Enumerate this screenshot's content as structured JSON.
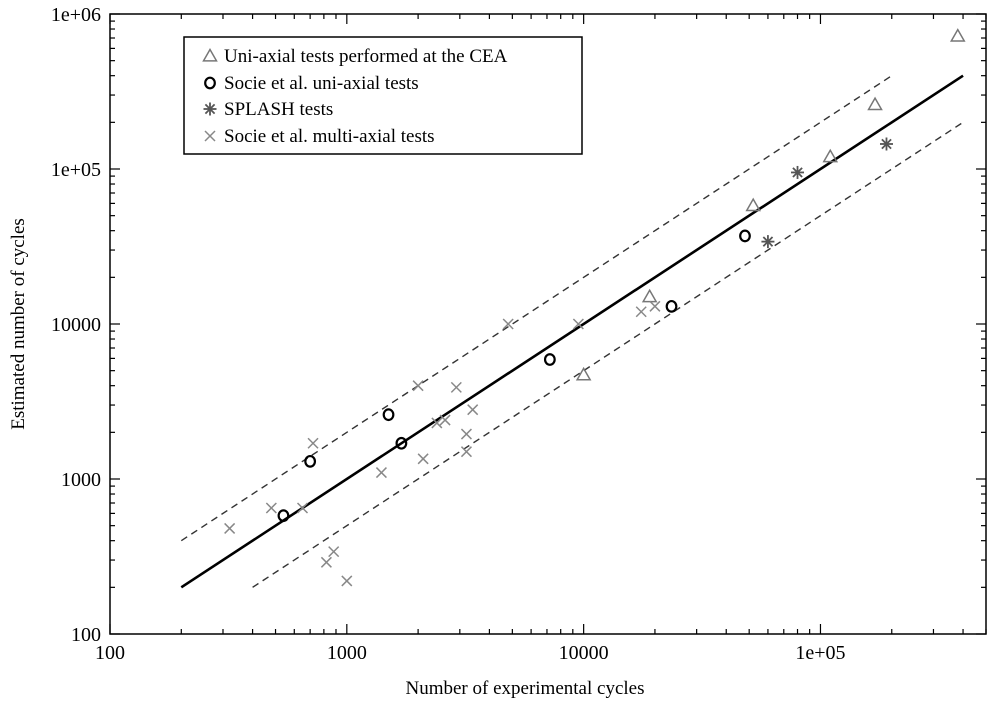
{
  "chart_data": {
    "type": "scatter",
    "x_scale": "log",
    "y_scale": "log",
    "xlim": [
      100,
      500000
    ],
    "ylim": [
      100,
      1000000
    ],
    "xlabel": "Number of experimental cycles",
    "ylabel": "Estimated number of cycles",
    "x_ticks": [
      {
        "value": 100,
        "label": "100"
      },
      {
        "value": 1000,
        "label": "1000"
      },
      {
        "value": 10000,
        "label": "10000"
      },
      {
        "value": 100000,
        "label": "1e+05"
      }
    ],
    "y_ticks": [
      {
        "value": 100,
        "label": "100"
      },
      {
        "value": 1000,
        "label": "1000"
      },
      {
        "value": 10000,
        "label": "10000"
      },
      {
        "value": 100000,
        "label": "1e+05"
      },
      {
        "value": 1000000,
        "label": "1e+06"
      }
    ],
    "grid": false,
    "legend_position": "top-left",
    "lines": [
      {
        "style": "solid",
        "color": "#000000",
        "x": [
          200,
          400000
        ],
        "y": [
          200,
          400000
        ]
      },
      {
        "style": "dashed",
        "color": "#333333",
        "x": [
          200,
          200000
        ],
        "y": [
          400,
          400000
        ]
      },
      {
        "style": "dashed",
        "color": "#333333",
        "x": [
          400,
          400000
        ],
        "y": [
          200,
          200000
        ]
      }
    ],
    "series": [
      {
        "name": "Uni-axial tests performed at the CEA",
        "marker": "triangle",
        "color": "#777777",
        "x": [
          10000,
          19000,
          52000,
          110000,
          170000,
          380000
        ],
        "y": [
          4700,
          15000,
          58000,
          120000,
          260000,
          720000
        ]
      },
      {
        "name": "Socie et al. uni-axial tests",
        "marker": "circle",
        "color": "#000000",
        "x": [
          540,
          700,
          1500,
          1700,
          7200,
          23500,
          48000
        ],
        "y": [
          580,
          1300,
          2600,
          1700,
          5900,
          13000,
          37000
        ]
      },
      {
        "name": "SPLASH tests",
        "marker": "asterisk",
        "color": "#555555",
        "x": [
          60000,
          80000,
          190000
        ],
        "y": [
          34000,
          95000,
          145000
        ]
      },
      {
        "name": "Socie et al. multi-axial tests",
        "marker": "cross",
        "color": "#888888",
        "x": [
          320,
          480,
          650,
          720,
          820,
          880,
          1000,
          1400,
          2000,
          2100,
          2400,
          2600,
          2900,
          3200,
          3200,
          3400,
          4800,
          9500,
          17500,
          20000
        ],
        "y": [
          480,
          650,
          650,
          1700,
          290,
          340,
          220,
          1100,
          4000,
          1350,
          2300,
          2400,
          3900,
          1950,
          1500,
          2800,
          10000,
          10000,
          12000,
          13000
        ]
      }
    ]
  }
}
